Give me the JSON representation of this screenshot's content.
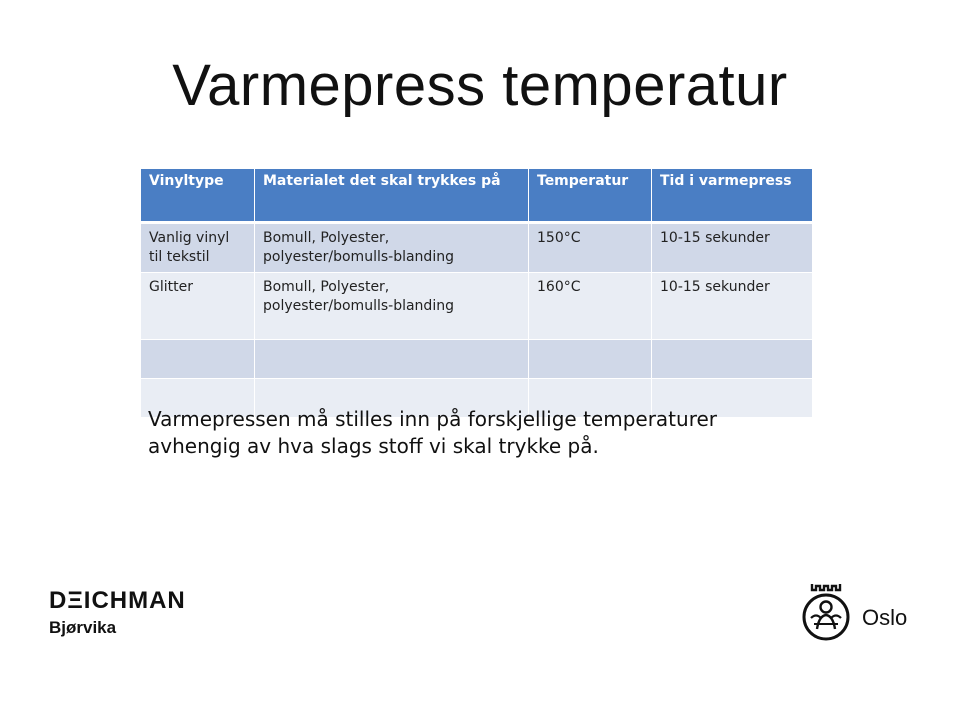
{
  "slide": {
    "title": "Varmepress temperatur",
    "note": "Varmepressen må stilles inn på forskjellige temperaturer avhengig av hva slags stoff vi skal trykke på."
  },
  "table": {
    "headers": [
      "Vinyltype",
      "Materialet det skal trykkes på",
      "Temperatur",
      "Tid i varmepress"
    ],
    "rows": [
      [
        "Vanlig vinyl til tekstil",
        "Bomull, Polyester, polyester/bomulls-blanding",
        "150°C",
        "10-15 sekunder"
      ],
      [
        "Glitter",
        "Bomull, Polyester, polyester/bomulls-blanding",
        "160°C",
        "10-15 sekunder"
      ],
      [
        "",
        "",
        "",
        ""
      ],
      [
        "",
        "",
        "",
        ""
      ]
    ]
  },
  "logos": {
    "left_brand": "DΞICHMAN",
    "left_branch": "Bjørvika",
    "right_city": "Oslo",
    "right_icon": "oslo-city-seal-icon"
  },
  "colors": {
    "header_bg": "#4a7ec4",
    "row_odd": "#d0d8e8",
    "row_even": "#e9edf4"
  }
}
